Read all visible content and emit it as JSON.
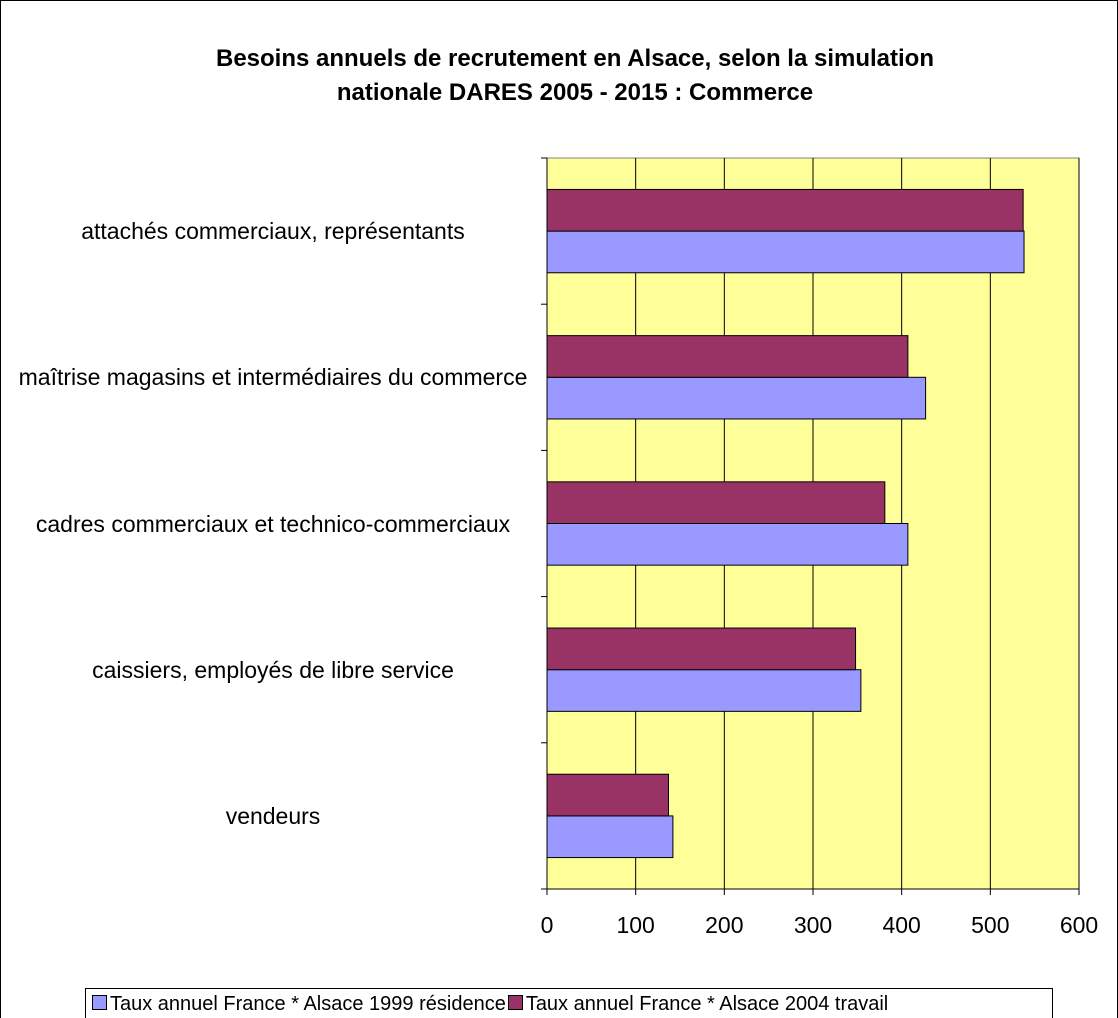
{
  "chart_data": {
    "type": "bar",
    "orientation": "horizontal",
    "title": "Besoins annuels de recrutement en Alsace, selon la simulation nationale DARES 2005 - 2015 : Commerce",
    "categories": [
      "attachés commerciaux, représentants",
      "maîtrise magasins et intermédiaires du commerce",
      "cadres commerciaux et technico-commerciaux",
      "caissiers, employés de libre service",
      "vendeurs"
    ],
    "series": [
      {
        "name": "Taux annuel France * Alsace 1999 résidence",
        "color": "#9999ff",
        "values": [
          538,
          427,
          407,
          354,
          142
        ]
      },
      {
        "name": "Taux annuel France * Alsace 2004 travail",
        "color": "#993366",
        "values": [
          537,
          407,
          381,
          348,
          137
        ]
      }
    ],
    "xlim": [
      0,
      600
    ],
    "xticks": [
      0,
      100,
      200,
      300,
      400,
      500,
      600
    ],
    "grid": true,
    "plot_background": "#ffff99",
    "legend": "bottom"
  }
}
